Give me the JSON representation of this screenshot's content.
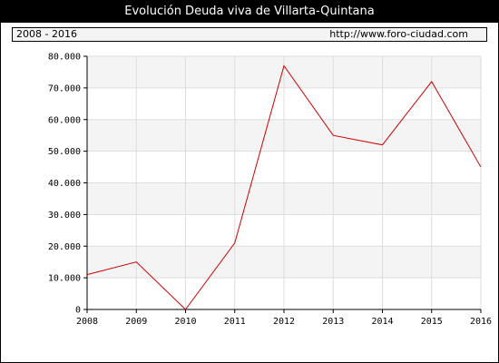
{
  "header": {
    "title": "Evolución Deuda viva de Villarta-Quintana",
    "period": "2008 - 2016",
    "url": "http://www.foro-ciudad.com"
  },
  "colors": {
    "line": "#cc0000",
    "band": "#f4f4f4",
    "grid": "#dddddd"
  },
  "chart_data": {
    "type": "line",
    "title": "Evolución Deuda viva de Villarta-Quintana",
    "xlabel": "",
    "ylabel": "",
    "categories": [
      "2008",
      "2009",
      "2010",
      "2011",
      "2012",
      "2013",
      "2014",
      "2015",
      "2016"
    ],
    "series": [
      {
        "values": [
          11000,
          15000,
          0,
          21000,
          77000,
          55000,
          52000,
          72000,
          45000
        ]
      }
    ],
    "ylim": [
      0,
      80000
    ],
    "yticks": [
      0,
      10000,
      20000,
      30000,
      40000,
      50000,
      60000,
      70000,
      80000
    ],
    "ytick_labels": [
      "0",
      "10.000",
      "20.000",
      "30.000",
      "40.000",
      "50.000",
      "60.000",
      "70.000",
      "80.000"
    ],
    "grid": true,
    "legend": "none"
  }
}
